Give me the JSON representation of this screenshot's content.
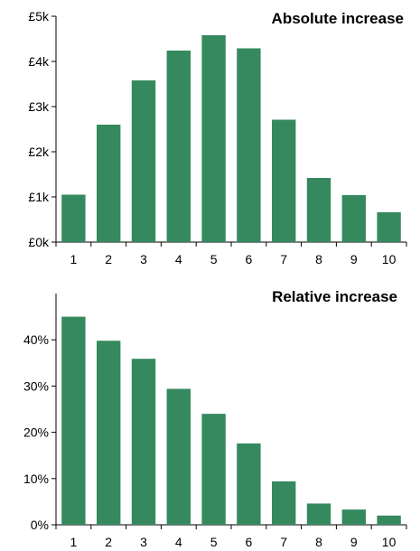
{
  "colors": {
    "bar": "#36895F",
    "axis": "#000000"
  },
  "chart_data": [
    {
      "type": "bar",
      "title": "Absolute increase",
      "xlabel": "",
      "ylabel": "",
      "categories": [
        "1",
        "2",
        "3",
        "4",
        "5",
        "6",
        "7",
        "8",
        "9",
        "10"
      ],
      "values": [
        1050,
        2600,
        3580,
        4240,
        4580,
        4290,
        2710,
        1420,
        1040,
        660
      ],
      "ylim": [
        0,
        5000
      ],
      "yticks": [
        0,
        1000,
        2000,
        3000,
        4000,
        5000
      ],
      "ytick_labels": [
        "£0k",
        "£1k",
        "£2k",
        "£3k",
        "£4k",
        "£5k"
      ],
      "grid": false,
      "legend": "none"
    },
    {
      "type": "bar",
      "title": "Relative increase",
      "xlabel": "",
      "ylabel": "",
      "categories": [
        "1",
        "2",
        "3",
        "4",
        "5",
        "6",
        "7",
        "8",
        "9",
        "10"
      ],
      "values": [
        45,
        39.8,
        35.9,
        29.4,
        24,
        17.6,
        9.4,
        4.6,
        3.3,
        2
      ],
      "ylim": [
        0,
        50
      ],
      "yticks": [
        0,
        10,
        20,
        30,
        40
      ],
      "ytick_labels": [
        "0%",
        "10%",
        "20%",
        "30%",
        "40%"
      ],
      "grid": false,
      "legend": "none"
    }
  ]
}
